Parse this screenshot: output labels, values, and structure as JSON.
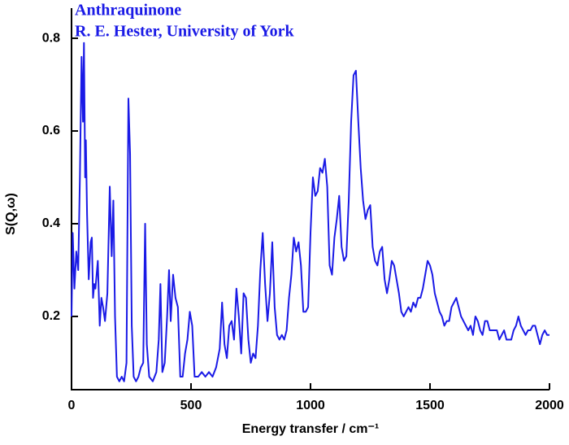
{
  "chart_data": {
    "type": "line",
    "title": "Anthraquinone",
    "subtitle": "R. E. Hester, University of York",
    "x_label": "Energy transfer / cm⁻¹",
    "y_label": "S(Q,ω)",
    "xlim": [
      0,
      2000
    ],
    "xticks": [
      0,
      500,
      1000,
      1500,
      2000
    ],
    "ylim": [
      0.042,
      0.865
    ],
    "yticks": [
      0.2,
      0.4,
      0.6,
      0.8
    ],
    "x": [
      0,
      5,
      12,
      20,
      28,
      35,
      42,
      48,
      52,
      57,
      60,
      65,
      72,
      80,
      85,
      90,
      95,
      100,
      110,
      118,
      125,
      132,
      140,
      150,
      160,
      168,
      175,
      182,
      190,
      200,
      210,
      220,
      230,
      238,
      245,
      252,
      260,
      270,
      280,
      290,
      300,
      308,
      315,
      325,
      340,
      355,
      365,
      372,
      380,
      390,
      400,
      408,
      415,
      425,
      435,
      445,
      455,
      465,
      475,
      485,
      495,
      505,
      515,
      530,
      545,
      560,
      575,
      590,
      605,
      620,
      630,
      640,
      650,
      660,
      670,
      680,
      690,
      700,
      710,
      720,
      730,
      740,
      750,
      760,
      770,
      780,
      790,
      800,
      810,
      820,
      830,
      840,
      850,
      860,
      870,
      880,
      890,
      900,
      910,
      920,
      930,
      940,
      950,
      960,
      970,
      980,
      990,
      1000,
      1010,
      1020,
      1030,
      1040,
      1050,
      1060,
      1070,
      1080,
      1090,
      1100,
      1110,
      1120,
      1130,
      1140,
      1150,
      1160,
      1170,
      1180,
      1190,
      1200,
      1210,
      1220,
      1230,
      1240,
      1250,
      1260,
      1270,
      1280,
      1290,
      1300,
      1310,
      1320,
      1330,
      1340,
      1350,
      1360,
      1370,
      1380,
      1390,
      1400,
      1410,
      1420,
      1430,
      1440,
      1450,
      1460,
      1470,
      1480,
      1490,
      1500,
      1510,
      1520,
      1530,
      1540,
      1550,
      1560,
      1570,
      1580,
      1590,
      1600,
      1610,
      1620,
      1630,
      1640,
      1650,
      1660,
      1670,
      1680,
      1690,
      1700,
      1710,
      1720,
      1730,
      1740,
      1750,
      1760,
      1770,
      1780,
      1790,
      1800,
      1810,
      1820,
      1830,
      1840,
      1850,
      1860,
      1870,
      1880,
      1890,
      1900,
      1910,
      1920,
      1930,
      1940,
      1950,
      1960,
      1970,
      1980,
      1990,
      2000
    ],
    "series": [
      {
        "color": "#1a1ae6",
        "values": [
          0.2,
          0.38,
          0.26,
          0.34,
          0.3,
          0.5,
          0.76,
          0.62,
          0.79,
          0.5,
          0.58,
          0.42,
          0.28,
          0.36,
          0.37,
          0.24,
          0.27,
          0.26,
          0.32,
          0.18,
          0.24,
          0.22,
          0.19,
          0.25,
          0.48,
          0.33,
          0.45,
          0.2,
          0.07,
          0.06,
          0.07,
          0.06,
          0.1,
          0.67,
          0.55,
          0.18,
          0.07,
          0.06,
          0.07,
          0.09,
          0.1,
          0.4,
          0.14,
          0.07,
          0.06,
          0.08,
          0.15,
          0.27,
          0.08,
          0.1,
          0.2,
          0.3,
          0.19,
          0.29,
          0.24,
          0.22,
          0.07,
          0.07,
          0.12,
          0.15,
          0.21,
          0.18,
          0.07,
          0.07,
          0.08,
          0.07,
          0.08,
          0.07,
          0.09,
          0.13,
          0.23,
          0.14,
          0.11,
          0.18,
          0.19,
          0.15,
          0.26,
          0.2,
          0.12,
          0.25,
          0.24,
          0.15,
          0.1,
          0.12,
          0.11,
          0.18,
          0.3,
          0.38,
          0.27,
          0.19,
          0.25,
          0.36,
          0.22,
          0.16,
          0.15,
          0.16,
          0.15,
          0.17,
          0.24,
          0.29,
          0.37,
          0.34,
          0.36,
          0.31,
          0.21,
          0.21,
          0.22,
          0.38,
          0.5,
          0.46,
          0.47,
          0.52,
          0.51,
          0.54,
          0.48,
          0.31,
          0.29,
          0.37,
          0.41,
          0.46,
          0.35,
          0.32,
          0.33,
          0.45,
          0.62,
          0.72,
          0.73,
          0.62,
          0.52,
          0.45,
          0.41,
          0.43,
          0.44,
          0.35,
          0.32,
          0.31,
          0.34,
          0.35,
          0.28,
          0.25,
          0.28,
          0.32,
          0.31,
          0.28,
          0.25,
          0.21,
          0.2,
          0.21,
          0.22,
          0.21,
          0.23,
          0.22,
          0.24,
          0.24,
          0.26,
          0.29,
          0.32,
          0.31,
          0.29,
          0.25,
          0.23,
          0.21,
          0.2,
          0.18,
          0.19,
          0.19,
          0.22,
          0.23,
          0.24,
          0.22,
          0.2,
          0.19,
          0.18,
          0.17,
          0.18,
          0.16,
          0.2,
          0.19,
          0.17,
          0.16,
          0.19,
          0.19,
          0.17,
          0.17,
          0.17,
          0.17,
          0.15,
          0.16,
          0.17,
          0.15,
          0.15,
          0.15,
          0.17,
          0.18,
          0.2,
          0.18,
          0.17,
          0.16,
          0.17,
          0.17,
          0.18,
          0.18,
          0.16,
          0.14,
          0.16,
          0.17,
          0.16,
          0.16
        ]
      }
    ]
  }
}
